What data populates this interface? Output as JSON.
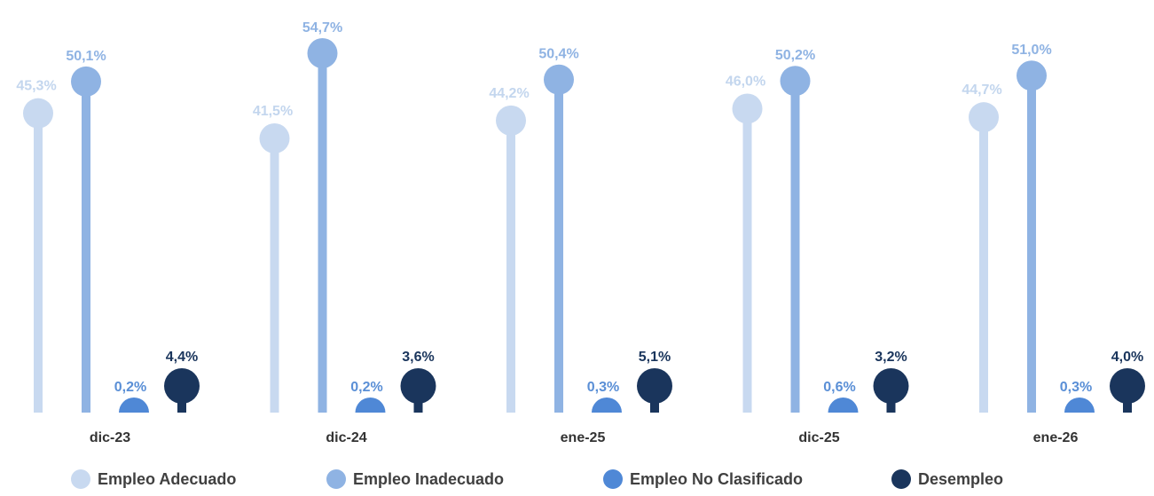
{
  "chart_data": {
    "type": "bar",
    "categories": [
      "dic-23",
      "dic-24",
      "ene-25",
      "dic-25",
      "ene-26"
    ],
    "series": [
      {
        "name": "Empleo Adecuado",
        "color": "#c8d9f0",
        "values": [
          45.3,
          41.5,
          44.2,
          46.0,
          44.7
        ],
        "labels": [
          "45,3%",
          "41,5%",
          "44,2%",
          "46,0%",
          "44,7%"
        ]
      },
      {
        "name": "Empleo Inadecuado",
        "color": "#8fb3e3",
        "values": [
          50.1,
          54.7,
          50.4,
          50.2,
          51.0
        ],
        "labels": [
          "50,1%",
          "54,7%",
          "50,4%",
          "50,2%",
          "51,0%"
        ]
      },
      {
        "name": "Empleo No Clasificado",
        "color": "#4f88d6",
        "values": [
          0.2,
          0.2,
          0.3,
          0.6,
          0.3
        ],
        "labels": [
          "0,2%",
          "0,2%",
          "0,3%",
          "0,6%",
          "0,3%"
        ]
      },
      {
        "name": "Desempleo",
        "color": "#1a355c",
        "values": [
          4.4,
          3.6,
          5.1,
          3.2,
          4.0
        ],
        "labels": [
          "4,4%",
          "3,6%",
          "5,1%",
          "3,2%",
          "4,0%"
        ]
      }
    ],
    "ylim": [
      0,
      56
    ],
    "grid": false,
    "legend_position": "bottom"
  }
}
